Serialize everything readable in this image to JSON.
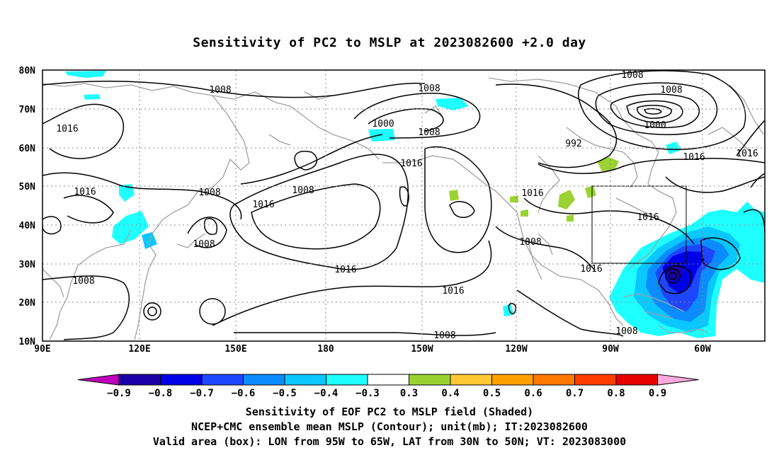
{
  "title": "Sensitivity of PC2 to MSLP at 2023082600 +2.0 day",
  "map": {
    "lat_labels": [
      "80N",
      "70N",
      "60N",
      "50N",
      "40N",
      "30N",
      "20N",
      "10N"
    ],
    "lon_labels": [
      "90E",
      "120E",
      "150E",
      "180",
      "150W",
      "120W",
      "90W",
      "60W"
    ],
    "contour_labels": [
      "1008",
      "1008",
      "1008",
      "1016",
      "1000",
      "1008",
      "1008",
      "1000",
      "992",
      "1016",
      "1016",
      "1008",
      "1016",
      "1016",
      "1016",
      "1008",
      "1016",
      "1016",
      "1016",
      "1008",
      "1016",
      "1008",
      "1008",
      "1016",
      "1008",
      "1008",
      "1008"
    ],
    "valid_box": {
      "lon_from": "95W",
      "lon_to": "65W",
      "lat_from": "30N",
      "lat_to": "50N"
    }
  },
  "colorbar": {
    "labels": [
      "-0.9",
      "-0.8",
      "-0.7",
      "-0.6",
      "-0.5",
      "-0.4",
      "-0.3",
      "0.3",
      "0.4",
      "0.5",
      "0.6",
      "0.7",
      "0.8",
      "0.9"
    ],
    "colors": [
      "#be00be",
      "#1a00a6",
      "#0000e6",
      "#1e46ff",
      "#0a8cff",
      "#0ac8ff",
      "#1effff",
      "#ffffff",
      "#9bd232",
      "#ffc832",
      "#ffa000",
      "#ff7800",
      "#ff3c00",
      "#e60000",
      "#ffaadc"
    ]
  },
  "caption": {
    "line1": "Sensitivity of EOF PC2 to MSLP field (Shaded)",
    "line2": "NCEP+CMC ensemble mean MSLP (Contour); unit(mb); IT:2023082600",
    "line3": "Valid area (box): LON from 95W to 65W, LAT from 30N to 50N; VT: 2023083000"
  }
}
